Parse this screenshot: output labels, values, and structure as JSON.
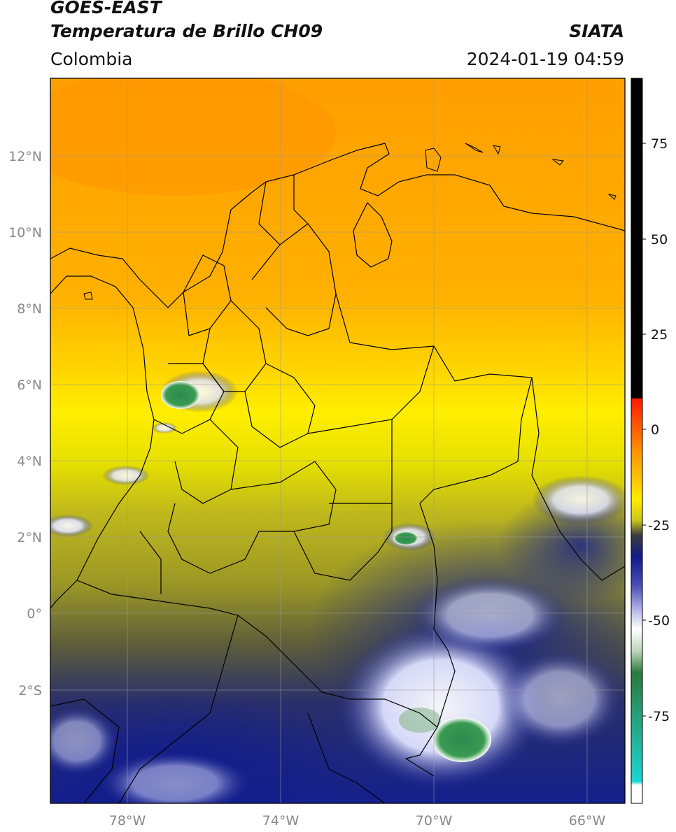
{
  "header": {
    "satellite": "GOES-EAST",
    "product": "Temperatura de Brillo CH09",
    "region": "Colombia",
    "organization": "SIATA",
    "timestamp": "2024-01-19 04:59"
  },
  "map": {
    "lon_range": [
      -80,
      -65
    ],
    "lat_range": [
      -5.2,
      14
    ],
    "lon_ticks": [
      "78°W",
      "74°W",
      "70°W",
      "66°W"
    ],
    "lat_ticks": [
      "12°N",
      "10°N",
      "8°N",
      "6°N",
      "4°N",
      "2°N",
      "0°",
      "2°S"
    ]
  },
  "colorbar": {
    "ticks": [
      "75",
      "50",
      "25",
      "0",
      "-25",
      "-50",
      "-75"
    ],
    "colors": {
      "black": "#000000",
      "red": "#ff1a00",
      "orange": "#ff9a00",
      "yellow": "#ffee00",
      "olive": "#c4c01a",
      "dark": "#3a3a3a",
      "navy": "#101a8c",
      "white": "#ffffff",
      "green": "#2a7a3a",
      "teal": "#1ad6c8"
    }
  }
}
